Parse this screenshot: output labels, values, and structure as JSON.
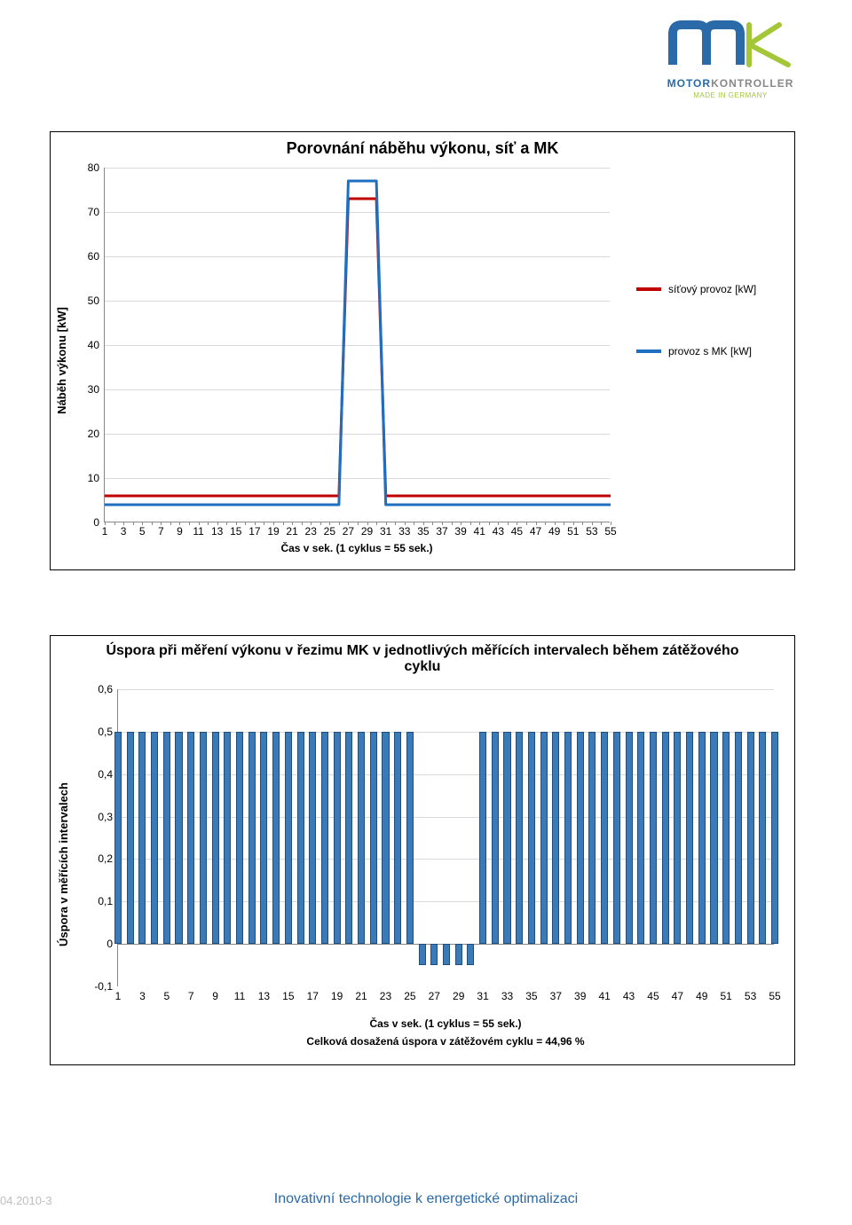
{
  "logo": {
    "brand1": "MOTOR",
    "brand2": "KONTROLLER",
    "sub": "MADE IN GERMANY",
    "stroke_color": "#2a6aa8",
    "accent_color": "#a4c639"
  },
  "chart1": {
    "type": "line",
    "title": "Porovnání náběhu výkonu, síť a MK",
    "title_fontsize": 18,
    "ylabel": "Náběh výkonu [kW]",
    "xlabel": "Čas v sek. (1 cyklus = 55 sek.)",
    "ylim": [
      0,
      80
    ],
    "ytick_step": 10,
    "xlim": [
      1,
      55
    ],
    "xticks": [
      1,
      3,
      5,
      7,
      9,
      11,
      13,
      15,
      17,
      19,
      21,
      23,
      25,
      27,
      29,
      31,
      33,
      35,
      37,
      39,
      41,
      43,
      45,
      47,
      49,
      51,
      53,
      55
    ],
    "grid_color": "#d9d9d9",
    "background_color": "#ffffff",
    "series": [
      {
        "name": "síťový provoz [kW]",
        "color": "#c00000",
        "line_width": 3,
        "x": [
          1,
          25,
          26,
          27,
          28,
          29,
          30,
          31,
          55
        ],
        "y": [
          6,
          6,
          6,
          73,
          73,
          73,
          73,
          6,
          6
        ]
      },
      {
        "name": "provoz s MK [kW]",
        "color": "#1f6fc0",
        "line_width": 3,
        "x": [
          1,
          25,
          26,
          27,
          28,
          29,
          30,
          31,
          55
        ],
        "y": [
          4,
          4,
          4,
          77,
          77,
          77,
          77,
          4,
          4
        ]
      }
    ]
  },
  "chart2": {
    "type": "bar",
    "title": "Úspora při měření výkonu v řezimu MK v jednotlivých měřících intervalech během zátěžového cyklu",
    "title_fontsize": 16,
    "ylabel": "Úspora v měřících intervalech",
    "xlabel": "Čas v sek. (1 cyklus = 55 sek.)",
    "subcaption": "Celková dosažená úspora v zátěžovém cyklu = 44,96 %",
    "ylim": [
      -0.1,
      0.6
    ],
    "yticks": [
      -0.1,
      0,
      0.1,
      0.2,
      0.3,
      0.4,
      0.5,
      0.6
    ],
    "ytick_labels": [
      "-0,1",
      "0",
      "0,1",
      "0,2",
      "0,3",
      "0,4",
      "0,5",
      "0,6"
    ],
    "xlim": [
      1,
      55
    ],
    "xticks": [
      1,
      3,
      5,
      7,
      9,
      11,
      13,
      15,
      17,
      19,
      21,
      23,
      25,
      27,
      29,
      31,
      33,
      35,
      37,
      39,
      41,
      43,
      45,
      47,
      49,
      51,
      53,
      55
    ],
    "bar_color": "#3a7ab8",
    "bar_border": "#1f4e79",
    "grid_color": "#d9d9d9",
    "values": [
      0.5,
      0.5,
      0.5,
      0.5,
      0.5,
      0.5,
      0.5,
      0.5,
      0.5,
      0.5,
      0.5,
      0.5,
      0.5,
      0.5,
      0.5,
      0.5,
      0.5,
      0.5,
      0.5,
      0.5,
      0.5,
      0.5,
      0.5,
      0.5,
      0.5,
      -0.05,
      -0.05,
      -0.05,
      -0.05,
      -0.05,
      0.5,
      0.5,
      0.5,
      0.5,
      0.5,
      0.5,
      0.5,
      0.5,
      0.5,
      0.5,
      0.5,
      0.5,
      0.5,
      0.5,
      0.5,
      0.5,
      0.5,
      0.5,
      0.5,
      0.5,
      0.5,
      0.5,
      0.5,
      0.5,
      0.5
    ]
  },
  "footer": {
    "left": "04.2010-3",
    "center": "Inovativní technologie k energetické optimalizaci"
  }
}
